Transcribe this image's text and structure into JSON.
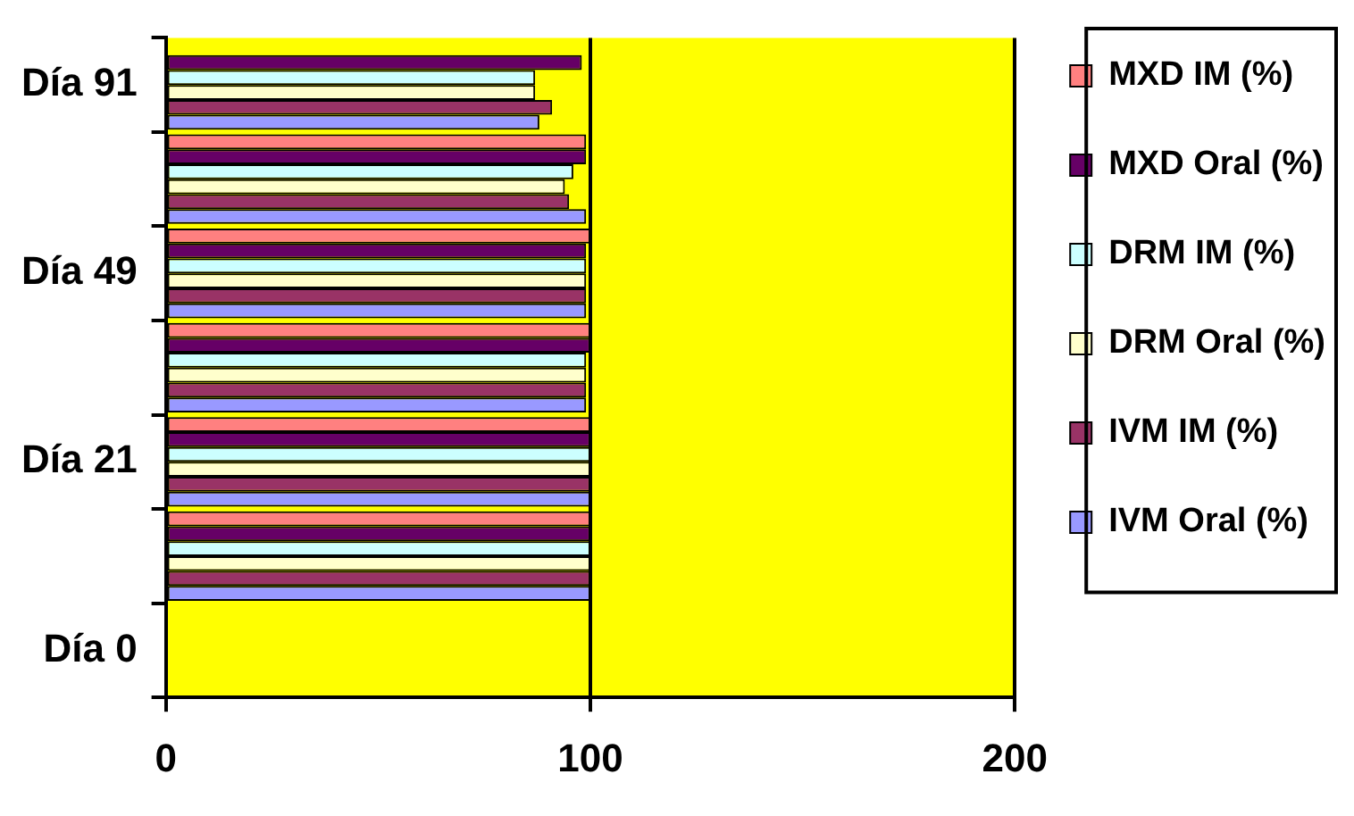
{
  "chart_data": {
    "type": "bar",
    "orientation": "horizontal",
    "categories": [
      "Día 91",
      null,
      "Día 49",
      null,
      "Día 21",
      null,
      "Día 0"
    ],
    "series": [
      {
        "name": "MXD IM (%)",
        "color": "#ff8080",
        "values": [
          null,
          99,
          100,
          100,
          100,
          100,
          null
        ]
      },
      {
        "name": "MXD Oral (%)",
        "color": "#660066",
        "values": [
          98,
          99,
          99,
          100,
          100,
          100,
          null
        ]
      },
      {
        "name": "DRM IM (%)",
        "color": "#ccffff",
        "values": [
          87,
          96,
          99,
          99,
          100,
          100,
          null
        ]
      },
      {
        "name": "DRM Oral (%)",
        "color": "#ffffcc",
        "values": [
          87,
          94,
          99,
          99,
          100,
          100,
          null
        ]
      },
      {
        "name": "IVM IM (%)",
        "color": "#993366",
        "values": [
          91,
          95,
          99,
          99,
          100,
          100,
          null
        ]
      },
      {
        "name": "IVM Oral (%)",
        "color": "#9999ff",
        "values": [
          88,
          99,
          99,
          99,
          100,
          100,
          null
        ]
      }
    ],
    "xlim": [
      0,
      200
    ],
    "xticks": [
      0,
      100,
      200
    ],
    "grid": "x",
    "legend": "right"
  }
}
